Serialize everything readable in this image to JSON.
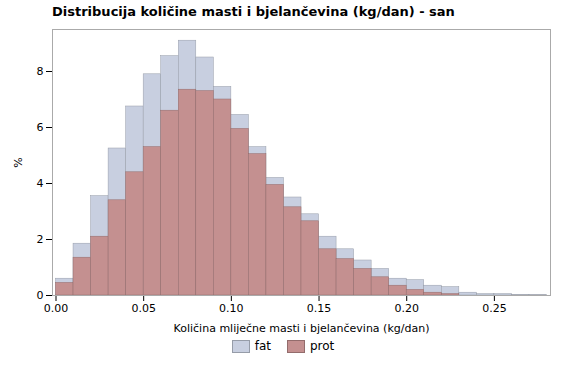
{
  "chart_data": {
    "type": "histogram",
    "title": "Distribucija količine masti i bjelančevina (kg/dan) - san",
    "xlabel": "Količina mliječne masti i bjelančevina (kg/dan)",
    "ylabel": "%",
    "bins": [
      0,
      0.01,
      0.02,
      0.03,
      0.04,
      0.05,
      0.06,
      0.07,
      0.08,
      0.09,
      0.1,
      0.11,
      0.12,
      0.13,
      0.14,
      0.15,
      0.16,
      0.17,
      0.18,
      0.19,
      0.2,
      0.21,
      0.22,
      0.23,
      0.24,
      0.25,
      0.26,
      0.27,
      0.28
    ],
    "series": [
      {
        "name": "fat",
        "color": "#c8cfe0",
        "values": [
          0.6,
          1.85,
          3.55,
          5.25,
          6.75,
          7.9,
          8.55,
          9.1,
          8.5,
          7.45,
          6.45,
          5.3,
          4.2,
          3.5,
          2.9,
          2.1,
          1.65,
          1.25,
          0.95,
          0.6,
          0.55,
          0.35,
          0.3,
          0.1,
          0.05,
          0.05,
          0.02,
          0.01
        ]
      },
      {
        "name": "prot",
        "color": "#c49090",
        "values": [
          0.45,
          1.35,
          2.1,
          3.4,
          4.4,
          5.3,
          6.6,
          7.35,
          7.3,
          7.0,
          5.95,
          5.05,
          3.95,
          3.15,
          2.65,
          1.65,
          1.3,
          0.95,
          0.65,
          0.35,
          0.2,
          0.1,
          0.05,
          0.0,
          0.0,
          0.0,
          0.0,
          0.0
        ]
      }
    ],
    "xlim": [
      -0.002,
      0.282
    ],
    "ylim": [
      0,
      9.5
    ],
    "xticks": [
      {
        "value": 0,
        "label": "0.00"
      },
      0.05,
      {
        "value": 0.1,
        "label": "0.10"
      },
      0.15,
      {
        "value": 0.2,
        "label": "0.20"
      },
      0.25
    ],
    "yticks": [
      0,
      2,
      4,
      6,
      8
    ],
    "grid": false,
    "legend": "bottom"
  }
}
